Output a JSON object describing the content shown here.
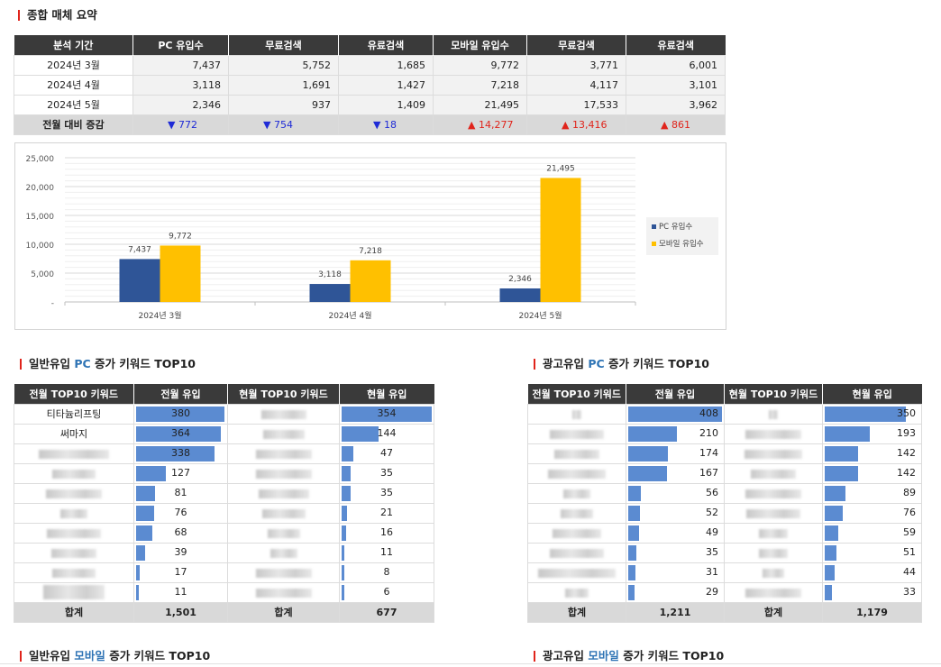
{
  "summary": {
    "title": "종합 매체 요약",
    "headers": [
      "분석 기간",
      "PC 유입수",
      "무료검색",
      "유료검색",
      "모바일 유입수",
      "무료검색",
      "유료검색"
    ],
    "rows": [
      {
        "period": "2024년 3월",
        "values": [
          "7,437",
          "5,752",
          "1,685",
          "9,772",
          "3,771",
          "6,001"
        ]
      },
      {
        "period": "2024년 4월",
        "values": [
          "3,118",
          "1,691",
          "1,427",
          "7,218",
          "4,117",
          "3,101"
        ]
      },
      {
        "period": "2024년 5월",
        "values": [
          "2,346",
          "937",
          "1,409",
          "21,495",
          "17,533",
          "3,962"
        ]
      }
    ],
    "diff": {
      "label": "전월 대비 증감",
      "values": [
        {
          "dir": "down",
          "text": "▼ 772"
        },
        {
          "dir": "down",
          "text": "▼ 754"
        },
        {
          "dir": "down",
          "text": "▼ 18"
        },
        {
          "dir": "up",
          "text": "▲ 14,277"
        },
        {
          "dir": "up",
          "text": "▲ 13,416"
        },
        {
          "dir": "up",
          "text": "▲ 861"
        }
      ]
    }
  },
  "chart_data": {
    "type": "bar",
    "title": "",
    "categories": [
      "2024년 3월",
      "2024년 4월",
      "2024년 5월"
    ],
    "series": [
      {
        "name": "PC 유입수",
        "color": "#2f5597",
        "values": [
          7437,
          3118,
          2346
        ],
        "labels": [
          "7,437",
          "3,118",
          "2,346"
        ]
      },
      {
        "name": "모바일 유입수",
        "color": "#ffc000",
        "values": [
          9772,
          7218,
          21495
        ],
        "labels": [
          "9,772",
          "7,218",
          "21,495"
        ]
      }
    ],
    "ylim": [
      0,
      25000
    ],
    "yticks": [
      0,
      5000,
      10000,
      15000,
      20000,
      25000
    ],
    "ytick_labels": [
      "-",
      "5,000",
      "10,000",
      "15,000",
      "20,000",
      "25,000"
    ],
    "grid": true,
    "legend": "right"
  },
  "general_pc": {
    "title_prefix": "일반유입 ",
    "title_highlight": "PC",
    "title_suffix": " 증가 키워드 TOP10",
    "headers": [
      "전월 TOP10 키워드",
      "전월 유입",
      "현월 TOP10 키워드",
      "현월 유입"
    ],
    "prev_keywords": [
      "티타늄리프팅",
      "써마지",
      "",
      "",
      "",
      "",
      "",
      "",
      "",
      ""
    ],
    "prev_values": [
      380,
      364,
      338,
      127,
      81,
      76,
      68,
      39,
      17,
      11
    ],
    "prev_labels": [
      "380",
      "364",
      "338",
      "127",
      "81",
      "76",
      "68",
      "39",
      "17",
      "11"
    ],
    "cur_values": [
      354,
      144,
      47,
      35,
      35,
      21,
      16,
      11,
      8,
      6
    ],
    "cur_labels": [
      "354",
      "144",
      "47",
      "35",
      "35",
      "21",
      "16",
      "11",
      "8",
      "6"
    ],
    "total_label": "합계",
    "prev_total": "1,501",
    "cur_total": "677"
  },
  "ad_pc": {
    "title_prefix": "광고유입 ",
    "title_highlight": "PC",
    "title_suffix": " 증가 키워드 TOP10",
    "headers": [
      "전월 TOP10 키워드",
      "전월 유입",
      "현월 TOP10 키워드",
      "현월 유입"
    ],
    "prev_values": [
      408,
      210,
      174,
      167,
      56,
      52,
      49,
      35,
      31,
      29
    ],
    "prev_labels": [
      "408",
      "210",
      "174",
      "167",
      "56",
      "52",
      "49",
      "35",
      "31",
      "29"
    ],
    "cur_values": [
      350,
      193,
      142,
      142,
      89,
      76,
      59,
      51,
      44,
      33
    ],
    "cur_labels": [
      "350",
      "193",
      "142",
      "142",
      "89",
      "76",
      "59",
      "51",
      "44",
      "33"
    ],
    "total_label": "합계",
    "prev_total": "1,211",
    "cur_total": "1,179"
  },
  "general_mobile": {
    "title_prefix": "일반유입 ",
    "title_highlight": "모바일",
    "title_suffix": " 증가 키워드 TOP10"
  },
  "ad_mobile": {
    "title_prefix": "광고유입 ",
    "title_highlight": "모바일",
    "title_suffix": " 증가 키워드 TOP10"
  }
}
